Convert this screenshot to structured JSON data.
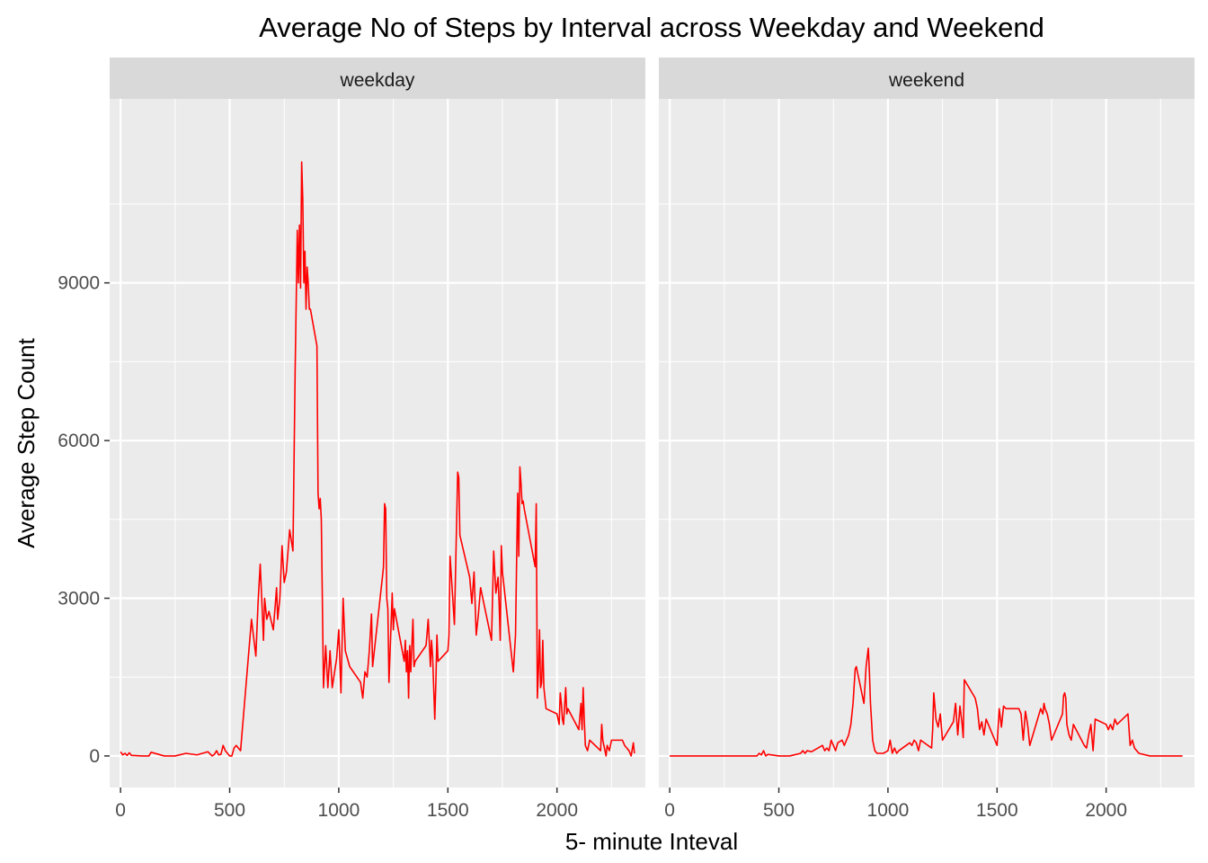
{
  "chart_data": {
    "type": "line",
    "title": "Average No of Steps by Interval across Weekday and Weekend",
    "xlabel": "5- minute Inteval",
    "ylabel": "Average Step Count",
    "xlim": [
      -50,
      2405
    ],
    "ylim": [
      -600,
      12500
    ],
    "x_ticks": [
      0,
      500,
      1000,
      1500,
      2000
    ],
    "x_tick_labels": [
      "0",
      "500",
      "1000",
      "1500",
      "2000"
    ],
    "y_ticks": [
      0,
      3000,
      6000,
      9000
    ],
    "y_tick_labels": [
      "0",
      "3000",
      "6000",
      "9000"
    ],
    "grid": true,
    "line_color": "#ff0000",
    "panel_background": "#ebebeb",
    "strip_background": "#d9d9d9",
    "facets": [
      {
        "name": "weekday",
        "x": [
          0,
          10,
          20,
          30,
          40,
          50,
          100,
          130,
          140,
          200,
          250,
          300,
          350,
          400,
          420,
          430,
          440,
          450,
          460,
          470,
          480,
          500,
          510,
          520,
          530,
          550,
          600,
          610,
          620,
          630,
          640,
          650,
          655,
          660,
          670,
          680,
          700,
          715,
          720,
          730,
          740,
          750,
          760,
          775,
          790,
          800,
          810,
          815,
          820,
          825,
          830,
          835,
          840,
          845,
          850,
          855,
          860,
          865,
          870,
          900,
          905,
          910,
          915,
          920,
          930,
          940,
          950,
          960,
          970,
          990,
          1000,
          1010,
          1020,
          1030,
          1050,
          1100,
          1110,
          1120,
          1130,
          1140,
          1150,
          1155,
          1200,
          1205,
          1210,
          1215,
          1220,
          1225,
          1230,
          1245,
          1250,
          1255,
          1300,
          1305,
          1310,
          1315,
          1320,
          1325,
          1330,
          1340,
          1345,
          1350,
          1400,
          1410,
          1420,
          1425,
          1430,
          1440,
          1445,
          1450,
          1455,
          1500,
          1505,
          1510,
          1530,
          1545,
          1550,
          1555,
          1600,
          1610,
          1620,
          1630,
          1640,
          1650,
          1700,
          1710,
          1720,
          1730,
          1735,
          1740,
          1745,
          1750,
          1800,
          1810,
          1815,
          1820,
          1825,
          1830,
          1835,
          1840,
          1845,
          1850,
          1900,
          1905,
          1910,
          1915,
          1920,
          1925,
          1930,
          1935,
          1940,
          1945,
          1950,
          2000,
          2010,
          2015,
          2020,
          2025,
          2030,
          2040,
          2045,
          2050,
          2100,
          2110,
          2115,
          2120,
          2125,
          2130,
          2140,
          2150,
          2200,
          2205,
          2210,
          2215,
          2220,
          2225,
          2230,
          2240,
          2250,
          2300,
          2310,
          2320,
          2330,
          2340,
          2350,
          2355
        ],
        "values": [
          80,
          20,
          50,
          10,
          60,
          10,
          0,
          0,
          70,
          0,
          0,
          50,
          20,
          80,
          0,
          30,
          100,
          20,
          30,
          200,
          100,
          0,
          0,
          150,
          200,
          100,
          2600,
          2250,
          1900,
          2900,
          3650,
          2700,
          2200,
          3000,
          2600,
          2750,
          2400,
          3200,
          2600,
          3000,
          4000,
          3300,
          3500,
          4300,
          3900,
          7300,
          10000,
          9000,
          10100,
          8900,
          11300,
          10600,
          9000,
          9600,
          8500,
          9300,
          9000,
          8500,
          8500,
          7800,
          5000,
          4700,
          4900,
          4500,
          1300,
          2100,
          1300,
          2000,
          1300,
          1850,
          2400,
          1200,
          3000,
          2000,
          1700,
          1400,
          1100,
          1600,
          1500,
          2000,
          2700,
          1700,
          3400,
          3600,
          4800,
          4700,
          3000,
          2800,
          1400,
          3100,
          2400,
          2800,
          1800,
          2200,
          1600,
          2000,
          1100,
          2100,
          1600,
          2600,
          1700,
          1800,
          2100,
          2600,
          1700,
          2200,
          1900,
          700,
          1400,
          2300,
          1800,
          2000,
          2300,
          3800,
          2500,
          5400,
          5300,
          4200,
          3400,
          2900,
          3500,
          2300,
          2700,
          3200,
          2200,
          3900,
          3100,
          3400,
          2900,
          2200,
          4000,
          3500,
          1600,
          2300,
          3700,
          5000,
          3800,
          5500,
          5200,
          4800,
          4850,
          4700,
          3600,
          4800,
          1100,
          1600,
          2400,
          1300,
          1400,
          2200,
          1300,
          1100,
          900,
          800,
          600,
          1200,
          1000,
          700,
          600,
          1300,
          800,
          900,
          500,
          1000,
          500,
          1300,
          700,
          200,
          100,
          300,
          100,
          600,
          300,
          200,
          100,
          0,
          200,
          100,
          300,
          300,
          200,
          150,
          100,
          0,
          250,
          50
        ]
      },
      {
        "name": "weekend",
        "x": [
          0,
          100,
          200,
          300,
          400,
          410,
          420,
          430,
          440,
          450,
          500,
          550,
          600,
          610,
          620,
          630,
          650,
          700,
          710,
          720,
          730,
          740,
          750,
          760,
          770,
          790,
          800,
          820,
          830,
          840,
          850,
          855,
          860,
          870,
          880,
          890,
          900,
          910,
          915,
          920,
          930,
          940,
          950,
          960,
          980,
          1000,
          1010,
          1020,
          1030,
          1040,
          1050,
          1100,
          1110,
          1120,
          1130,
          1140,
          1150,
          1200,
          1205,
          1210,
          1220,
          1230,
          1240,
          1250,
          1300,
          1310,
          1320,
          1330,
          1340,
          1345,
          1350,
          1400,
          1410,
          1420,
          1430,
          1440,
          1450,
          1500,
          1510,
          1520,
          1530,
          1540,
          1550,
          1600,
          1610,
          1620,
          1630,
          1640,
          1650,
          1700,
          1710,
          1715,
          1720,
          1730,
          1740,
          1750,
          1800,
          1805,
          1810,
          1815,
          1820,
          1830,
          1840,
          1850,
          1900,
          1910,
          1920,
          1930,
          1940,
          1950,
          2000,
          2010,
          2020,
          2030,
          2040,
          2050,
          2100,
          2110,
          2120,
          2130,
          2140,
          2150,
          2200,
          2250,
          2300,
          2350
        ],
        "values": [
          0,
          0,
          0,
          0,
          0,
          50,
          20,
          100,
          0,
          30,
          0,
          0,
          50,
          100,
          50,
          100,
          80,
          200,
          100,
          150,
          100,
          300,
          200,
          100,
          250,
          300,
          200,
          400,
          600,
          1000,
          1650,
          1700,
          1600,
          1400,
          1200,
          1000,
          1700,
          2050,
          1600,
          1000,
          300,
          100,
          50,
          50,
          50,
          100,
          300,
          50,
          150,
          50,
          100,
          250,
          200,
          300,
          250,
          100,
          300,
          150,
          500,
          1200,
          700,
          550,
          800,
          300,
          650,
          1000,
          400,
          950,
          600,
          350,
          1450,
          1100,
          900,
          500,
          650,
          400,
          700,
          200,
          900,
          550,
          950,
          900,
          900,
          900,
          800,
          300,
          850,
          600,
          200,
          900,
          800,
          1000,
          900,
          800,
          600,
          300,
          800,
          1150,
          1200,
          1100,
          600,
          400,
          300,
          600,
          200,
          150,
          400,
          600,
          100,
          700,
          600,
          500,
          600,
          500,
          700,
          600,
          800,
          200,
          300,
          150,
          100,
          50,
          0,
          0,
          0,
          0
        ]
      }
    ]
  }
}
